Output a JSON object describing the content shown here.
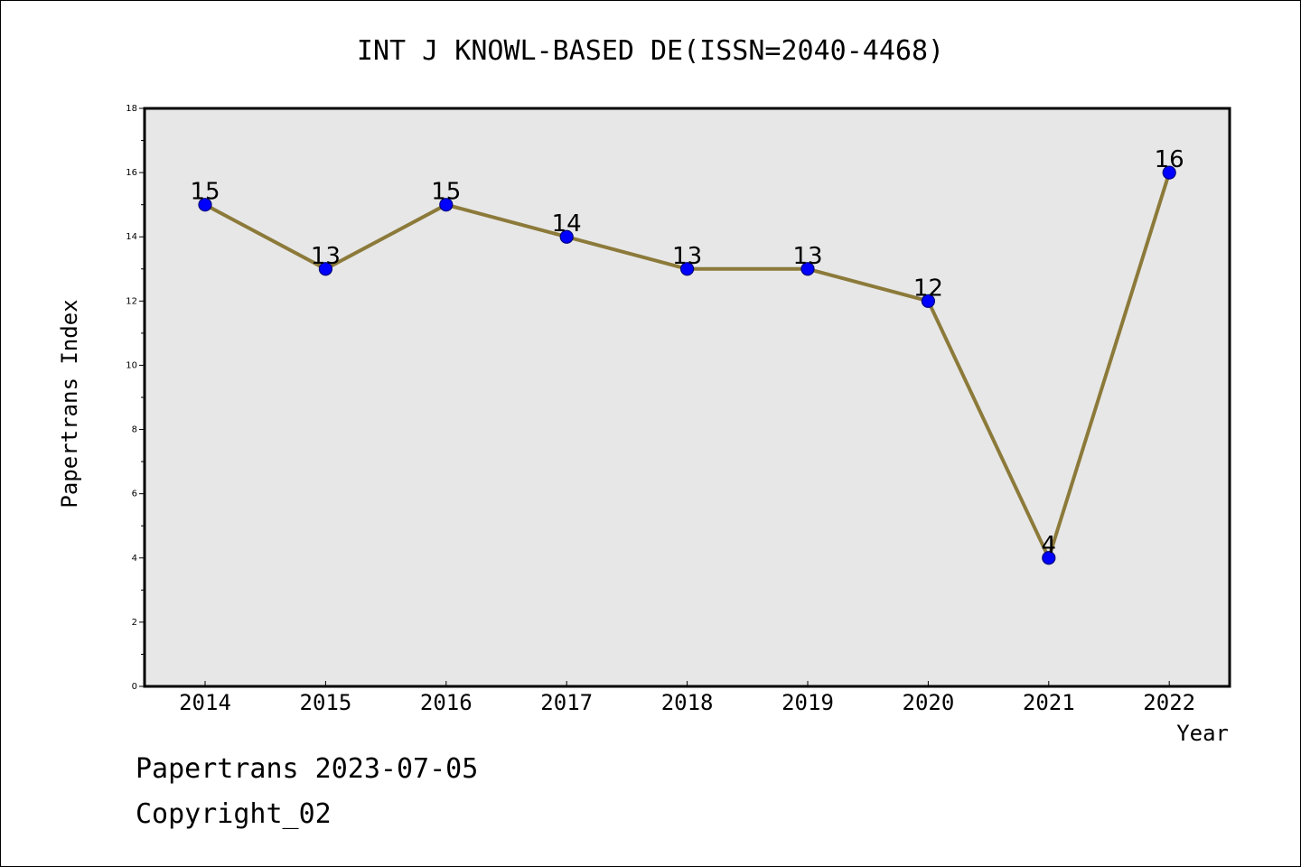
{
  "chart_data": {
    "type": "line",
    "title": "INT J KNOWL-BASED DE(ISSN=2040-4468)",
    "xlabel": "Year",
    "ylabel": "Papertrans Index",
    "x": [
      "2014",
      "2015",
      "2016",
      "2017",
      "2018",
      "2019",
      "2020",
      "2021",
      "2022"
    ],
    "series": [
      {
        "values": [
          15,
          13,
          15,
          14,
          13,
          13,
          12,
          4,
          16
        ]
      }
    ],
    "data_labels": [
      "15",
      "13",
      "15",
      "14",
      "13",
      "13",
      "12",
      "4",
      "16"
    ],
    "ylim": [
      0,
      18
    ],
    "yticks": [
      "0",
      "2",
      "4",
      "6",
      "8",
      "10",
      "12",
      "14",
      "16",
      "18"
    ],
    "grid": false,
    "legend": "none",
    "colors": {
      "plot_background": "#e7e7e7",
      "line": "#8c7a3a",
      "marker_fill": "#0000ff",
      "marker_edge": "#000080"
    }
  },
  "footer": {
    "line1": "Papertrans 2023-07-05",
    "line2": "Copyright_02"
  }
}
